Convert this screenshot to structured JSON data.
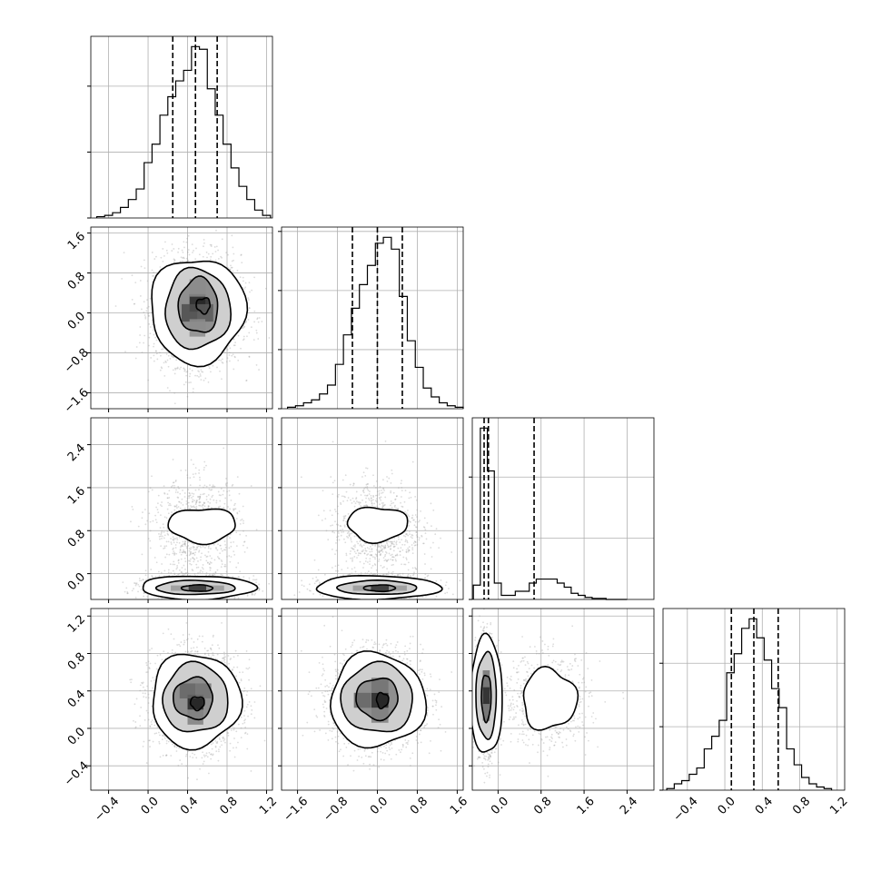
{
  "chart_data": {
    "type": "corner",
    "grid": true,
    "parameters": [
      {
        "ticks": [
          -0.4,
          0.0,
          0.4,
          0.8,
          1.2
        ],
        "tick_labels": [
          "−0.4",
          "0.0",
          "0.4",
          "0.8",
          "1.2"
        ],
        "range": [
          -0.58,
          1.26
        ],
        "quantiles": [
          0.25,
          0.48,
          0.7
        ],
        "hist": {
          "edges": [
            -0.52,
            -0.44,
            -0.36,
            -0.28,
            -0.2,
            -0.12,
            -0.04,
            0.04,
            0.12,
            0.2,
            0.28,
            0.36,
            0.44,
            0.52,
            0.6,
            0.68,
            0.76,
            0.84,
            0.92,
            1.0,
            1.08,
            1.16,
            1.24
          ],
          "counts": [
            1,
            2,
            4,
            8,
            14,
            22,
            42,
            56,
            78,
            92,
            104,
            112,
            130,
            128,
            98,
            78,
            56,
            38,
            24,
            14,
            6,
            2
          ]
        }
      },
      {
        "ticks": [
          -1.6,
          -0.8,
          0.0,
          0.8,
          1.6
        ],
        "tick_labels": [
          "−1.6",
          "−0.8",
          "0.0",
          "0.8",
          "1.6"
        ],
        "range": [
          -1.92,
          1.72
        ],
        "quantiles": [
          -0.5,
          0.0,
          0.5
        ],
        "hist": {
          "edges": [
            -1.8,
            -1.64,
            -1.48,
            -1.32,
            -1.16,
            -1.0,
            -0.84,
            -0.68,
            -0.52,
            -0.36,
            -0.2,
            -0.04,
            0.12,
            0.28,
            0.44,
            0.6,
            0.76,
            0.92,
            1.08,
            1.24,
            1.4,
            1.56,
            1.72
          ],
          "counts": [
            1,
            2,
            4,
            6,
            10,
            16,
            30,
            50,
            68,
            84,
            97,
            112,
            116,
            108,
            76,
            46,
            28,
            14,
            8,
            4,
            2,
            1
          ]
        }
      },
      {
        "ticks": [
          0.0,
          0.8,
          1.6,
          2.4
        ],
        "tick_labels": [
          "0.0",
          "0.8",
          "1.6",
          "2.4"
        ],
        "range": [
          -0.48,
          2.9
        ],
        "quantiles": [
          -0.26,
          -0.18,
          0.67
        ],
        "hist": {
          "edges": [
            -0.46,
            -0.33,
            -0.2,
            -0.07,
            0.06,
            0.19,
            0.32,
            0.45,
            0.58,
            0.71,
            0.84,
            0.97,
            1.1,
            1.23,
            1.36,
            1.49,
            1.62,
            1.75,
            1.88,
            2.01,
            2.14,
            2.27,
            2.4
          ],
          "counts": [
            14,
            168,
            126,
            16,
            4,
            4,
            8,
            8,
            16,
            20,
            20,
            20,
            16,
            12,
            6,
            4,
            2,
            1,
            1,
            0,
            0,
            0
          ]
        }
      },
      {
        "ticks": [
          -0.4,
          0.0,
          0.4,
          0.8,
          1.2
        ],
        "tick_labels": [
          "−0.4",
          "0.0",
          "0.4",
          "0.8",
          "1.2"
        ],
        "range": [
          -0.66,
          1.28
        ],
        "quantiles": [
          0.07,
          0.31,
          0.57
        ],
        "hist": {
          "edges": [
            -0.62,
            -0.54,
            -0.46,
            -0.38,
            -0.3,
            -0.22,
            -0.14,
            -0.06,
            0.02,
            0.1,
            0.18,
            0.26,
            0.34,
            0.42,
            0.5,
            0.58,
            0.66,
            0.74,
            0.82,
            0.9,
            0.98,
            1.06,
            1.14
          ],
          "counts": [
            1,
            4,
            6,
            10,
            14,
            26,
            34,
            44,
            74,
            86,
            102,
            108,
            96,
            82,
            64,
            52,
            26,
            16,
            8,
            4,
            2,
            1
          ]
        }
      }
    ],
    "pairs": [
      {
        "row": 1,
        "col": 0,
        "blobs": [
          {
            "cx": 0.5,
            "cy": 0.05,
            "sx": 0.22,
            "sy": 0.55,
            "n": 2400
          }
        ],
        "contours": [
          {
            "cx": 0.5,
            "cy": 0.05,
            "rx": 0.48,
            "ry": 1.05,
            "wobble": 0.06
          },
          {
            "cx": 0.5,
            "cy": 0.08,
            "rx": 0.33,
            "ry": 0.8,
            "wobble": 0.05
          },
          {
            "cx": 0.51,
            "cy": 0.14,
            "rx": 0.2,
            "ry": 0.55,
            "wobble": 0.06
          },
          {
            "cx": 0.56,
            "cy": 0.15,
            "rx": 0.07,
            "ry": 0.15,
            "wobble": 0.12
          }
        ],
        "cells": [
          {
            "x": 0.5,
            "y": 0.2,
            "w": 0.16,
            "h": 0.35,
            "d": 0.85
          },
          {
            "x": 0.42,
            "y": 0.0,
            "w": 0.16,
            "h": 0.35,
            "d": 0.7
          },
          {
            "x": 0.58,
            "y": 0.0,
            "w": 0.16,
            "h": 0.35,
            "d": 0.65
          },
          {
            "x": 0.5,
            "y": -0.3,
            "w": 0.16,
            "h": 0.35,
            "d": 0.45
          },
          {
            "x": 0.5,
            "y": 0.5,
            "w": 0.16,
            "h": 0.35,
            "d": 0.45
          }
        ]
      },
      {
        "row": 2,
        "col": 0,
        "blobs": [
          {
            "cx": 0.48,
            "cy": -0.25,
            "sx": 0.25,
            "sy": 0.1,
            "n": 1800
          },
          {
            "cx": 0.5,
            "cy": 0.85,
            "sx": 0.22,
            "sy": 0.45,
            "n": 900
          }
        ],
        "contours": [
          {
            "cx": 0.5,
            "cy": -0.26,
            "rx": 0.58,
            "ry": 0.22,
            "wobble": 0.05
          },
          {
            "cx": 0.48,
            "cy": -0.26,
            "rx": 0.4,
            "ry": 0.13,
            "wobble": 0.04
          },
          {
            "cx": 0.5,
            "cy": -0.27,
            "rx": 0.16,
            "ry": 0.06,
            "wobble": 0.05
          },
          {
            "cx": 0.55,
            "cy": 0.9,
            "rx": 0.34,
            "ry": 0.32,
            "wobble": 0.08
          }
        ],
        "cells": [
          {
            "x": 0.5,
            "y": -0.27,
            "w": 0.18,
            "h": 0.1,
            "d": 0.8
          },
          {
            "x": 0.32,
            "y": -0.27,
            "w": 0.18,
            "h": 0.1,
            "d": 0.4
          },
          {
            "x": 0.68,
            "y": -0.27,
            "w": 0.18,
            "h": 0.1,
            "d": 0.4
          }
        ]
      },
      {
        "row": 2,
        "col": 1,
        "blobs": [
          {
            "cx": 0.0,
            "cy": -0.25,
            "sx": 0.5,
            "sy": 0.1,
            "n": 1800
          },
          {
            "cx": 0.0,
            "cy": 0.85,
            "sx": 0.45,
            "sy": 0.45,
            "n": 900
          }
        ],
        "contours": [
          {
            "cx": 0.0,
            "cy": -0.26,
            "rx": 1.25,
            "ry": 0.22,
            "wobble": 0.05
          },
          {
            "cx": 0.0,
            "cy": -0.26,
            "rx": 0.8,
            "ry": 0.13,
            "wobble": 0.04
          },
          {
            "cx": 0.05,
            "cy": -0.27,
            "rx": 0.32,
            "ry": 0.06,
            "wobble": 0.05
          },
          {
            "cx": 0.0,
            "cy": 0.92,
            "rx": 0.6,
            "ry": 0.32,
            "wobble": 0.08
          }
        ],
        "cells": [
          {
            "x": 0.05,
            "y": -0.27,
            "w": 0.36,
            "h": 0.1,
            "d": 0.8
          },
          {
            "x": -0.31,
            "y": -0.27,
            "w": 0.36,
            "h": 0.1,
            "d": 0.4
          },
          {
            "x": 0.41,
            "y": -0.27,
            "w": 0.36,
            "h": 0.1,
            "d": 0.4
          }
        ]
      },
      {
        "row": 3,
        "col": 0,
        "blobs": [
          {
            "cx": 0.48,
            "cy": 0.3,
            "sx": 0.22,
            "sy": 0.25,
            "n": 2400
          }
        ],
        "contours": [
          {
            "cx": 0.48,
            "cy": 0.3,
            "rx": 0.45,
            "ry": 0.5,
            "wobble": 0.06
          },
          {
            "cx": 0.48,
            "cy": 0.32,
            "rx": 0.33,
            "ry": 0.37,
            "wobble": 0.05
          },
          {
            "cx": 0.46,
            "cy": 0.32,
            "rx": 0.2,
            "ry": 0.22,
            "wobble": 0.06
          },
          {
            "cx": 0.5,
            "cy": 0.27,
            "rx": 0.07,
            "ry": 0.07,
            "wobble": 0.1
          }
        ],
        "cells": [
          {
            "x": 0.48,
            "y": 0.28,
            "w": 0.16,
            "h": 0.16,
            "d": 0.85
          },
          {
            "x": 0.4,
            "y": 0.4,
            "w": 0.16,
            "h": 0.16,
            "d": 0.6
          },
          {
            "x": 0.56,
            "y": 0.4,
            "w": 0.16,
            "h": 0.16,
            "d": 0.55
          },
          {
            "x": 0.48,
            "y": 0.12,
            "w": 0.16,
            "h": 0.16,
            "d": 0.5
          }
        ]
      },
      {
        "row": 3,
        "col": 1,
        "blobs": [
          {
            "cx": 0.0,
            "cy": 0.3,
            "sx": 0.45,
            "sy": 0.25,
            "n": 2400
          }
        ],
        "contours": [
          {
            "cx": 0.0,
            "cy": 0.3,
            "rx": 0.95,
            "ry": 0.5,
            "wobble": 0.06
          },
          {
            "cx": 0.0,
            "cy": 0.32,
            "rx": 0.72,
            "ry": 0.37,
            "wobble": 0.05
          },
          {
            "cx": 0.0,
            "cy": 0.32,
            "rx": 0.42,
            "ry": 0.22,
            "wobble": 0.06
          },
          {
            "cx": 0.1,
            "cy": 0.3,
            "rx": 0.12,
            "ry": 0.08,
            "wobble": 0.1
          }
        ],
        "cells": [
          {
            "x": 0.05,
            "y": 0.3,
            "w": 0.34,
            "h": 0.16,
            "d": 0.85
          },
          {
            "x": -0.3,
            "y": 0.3,
            "w": 0.34,
            "h": 0.16,
            "d": 0.6
          },
          {
            "x": 0.05,
            "y": 0.46,
            "w": 0.34,
            "h": 0.16,
            "d": 0.55
          },
          {
            "x": 0.05,
            "y": 0.14,
            "w": 0.34,
            "h": 0.16,
            "d": 0.5
          }
        ]
      },
      {
        "row": 3,
        "col": 2,
        "blobs": [
          {
            "cx": -0.22,
            "cy": 0.35,
            "sx": 0.1,
            "sy": 0.28,
            "n": 2200
          },
          {
            "cx": 0.9,
            "cy": 0.3,
            "sx": 0.4,
            "sy": 0.24,
            "n": 700
          }
        ],
        "contours": [
          {
            "cx": -0.22,
            "cy": 0.35,
            "rx": 0.3,
            "ry": 0.63,
            "wobble": 0.04
          },
          {
            "cx": -0.22,
            "cy": 0.35,
            "rx": 0.19,
            "ry": 0.46,
            "wobble": 0.04
          },
          {
            "cx": -0.22,
            "cy": 0.33,
            "rx": 0.09,
            "ry": 0.25,
            "wobble": 0.05
          },
          {
            "cx": 0.95,
            "cy": 0.31,
            "rx": 0.5,
            "ry": 0.32,
            "wobble": 0.09
          }
        ],
        "cells": [
          {
            "x": -0.22,
            "y": 0.35,
            "w": 0.13,
            "h": 0.18,
            "d": 0.85
          },
          {
            "x": -0.22,
            "y": 0.53,
            "w": 0.13,
            "h": 0.18,
            "d": 0.55
          },
          {
            "x": -0.22,
            "y": 0.17,
            "w": 0.13,
            "h": 0.18,
            "d": 0.55
          }
        ]
      }
    ]
  }
}
